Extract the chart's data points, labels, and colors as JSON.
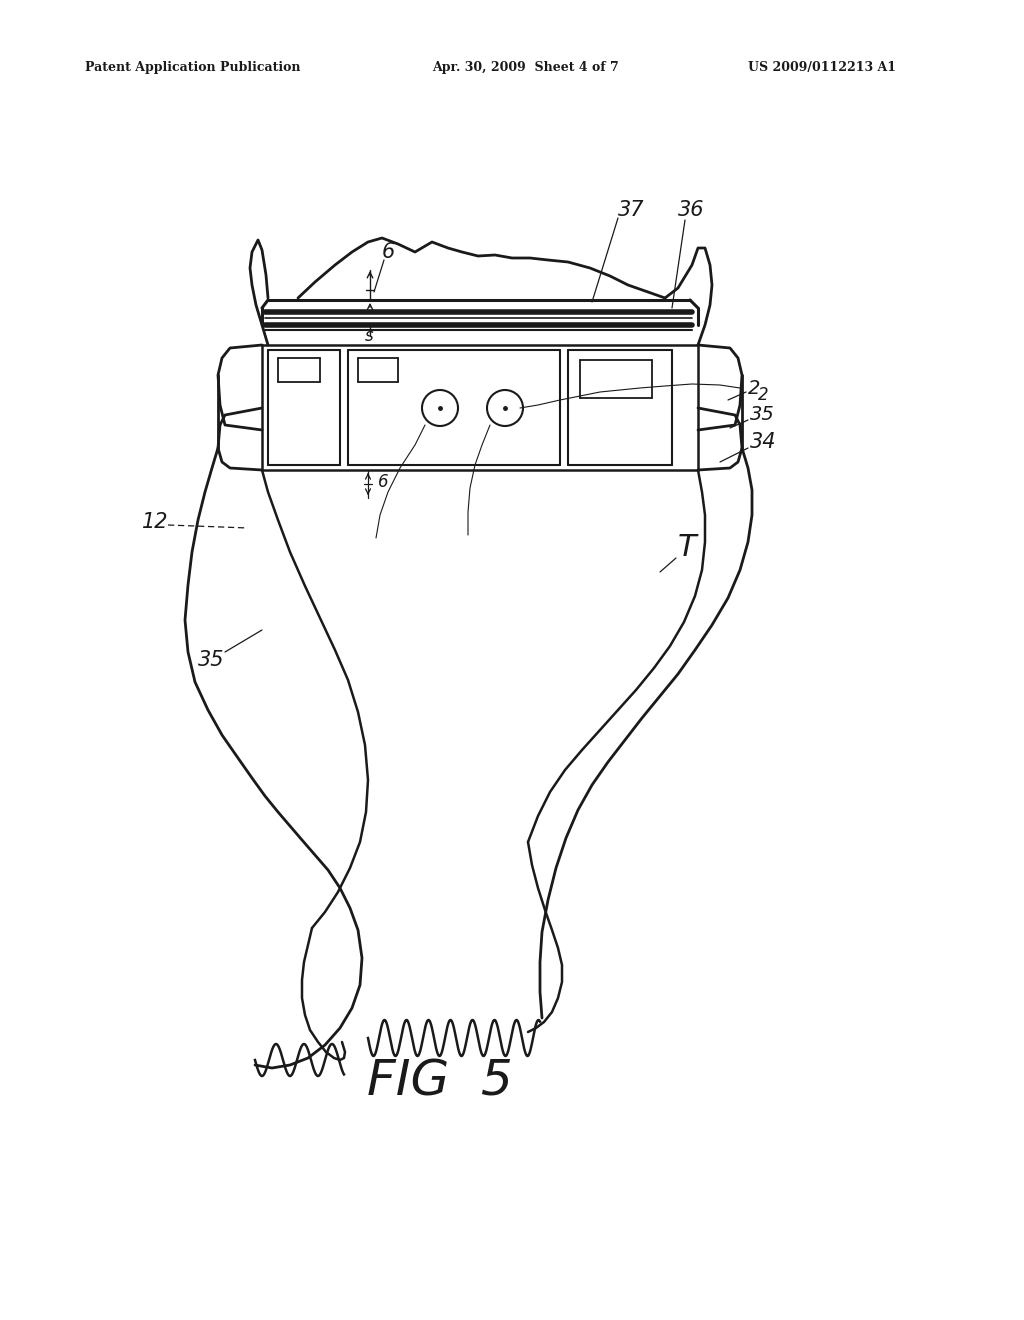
{
  "bg_color": "#ffffff",
  "line_color": "#1a1a1a",
  "header_left": "Patent Application Publication",
  "header_mid": "Apr. 30, 2009  Sheet 4 of 7",
  "header_right": "US 2009/0112213 A1"
}
